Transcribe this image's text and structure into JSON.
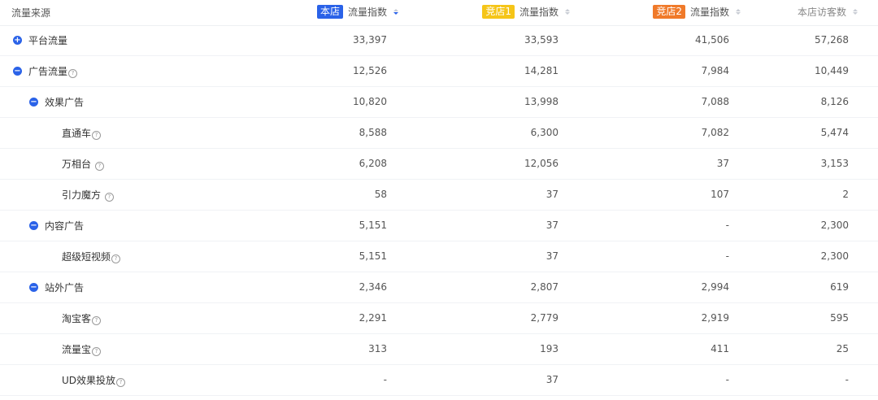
{
  "header": {
    "source_label": "流量来源",
    "col1": {
      "badge": "本店",
      "label": "流量指数",
      "color": "#2a62e8"
    },
    "col2": {
      "badge": "竞店1",
      "label": "流量指数",
      "color": "#f5c518"
    },
    "col3": {
      "badge": "竞店2",
      "label": "流量指数",
      "color": "#f07a2a"
    },
    "col4": {
      "label": "本店访客数"
    }
  },
  "rows": [
    {
      "level": 1,
      "toggle": "+",
      "name": "平台流量",
      "help": false,
      "values": [
        "33,397",
        "33,593",
        "41,506",
        "57,268"
      ]
    },
    {
      "level": 1,
      "toggle": "-",
      "name": "广告流量",
      "help": true,
      "values": [
        "12,526",
        "14,281",
        "7,984",
        "10,449"
      ]
    },
    {
      "level": 2,
      "toggle": "-",
      "name": "效果广告",
      "help": false,
      "values": [
        "10,820",
        "13,998",
        "7,088",
        "8,126"
      ]
    },
    {
      "level": 3,
      "toggle": "",
      "name": "直通车",
      "help": true,
      "values": [
        "8,588",
        "6,300",
        "7,082",
        "5,474"
      ]
    },
    {
      "level": 3,
      "toggle": "",
      "name": "万相台 ",
      "help": true,
      "values": [
        "6,208",
        "12,056",
        "37",
        "3,153"
      ]
    },
    {
      "level": 3,
      "toggle": "",
      "name": "引力魔方 ",
      "help": true,
      "values": [
        "58",
        "37",
        "107",
        "2"
      ]
    },
    {
      "level": 2,
      "toggle": "-",
      "name": "内容广告",
      "help": false,
      "values": [
        "5,151",
        "37",
        "-",
        "2,300"
      ]
    },
    {
      "level": 3,
      "toggle": "",
      "name": "超级短视频",
      "help": true,
      "values": [
        "5,151",
        "37",
        "-",
        "2,300"
      ]
    },
    {
      "level": 2,
      "toggle": "-",
      "name": "站外广告",
      "help": false,
      "values": [
        "2,346",
        "2,807",
        "2,994",
        "619"
      ]
    },
    {
      "level": 3,
      "toggle": "",
      "name": "淘宝客",
      "help": true,
      "values": [
        "2,291",
        "2,779",
        "2,919",
        "595"
      ]
    },
    {
      "level": 3,
      "toggle": "",
      "name": "流量宝",
      "help": true,
      "values": [
        "313",
        "193",
        "411",
        "25"
      ]
    },
    {
      "level": 3,
      "toggle": "",
      "name": "UD效果投放",
      "help": true,
      "values": [
        "-",
        "37",
        "-",
        "-"
      ]
    }
  ]
}
